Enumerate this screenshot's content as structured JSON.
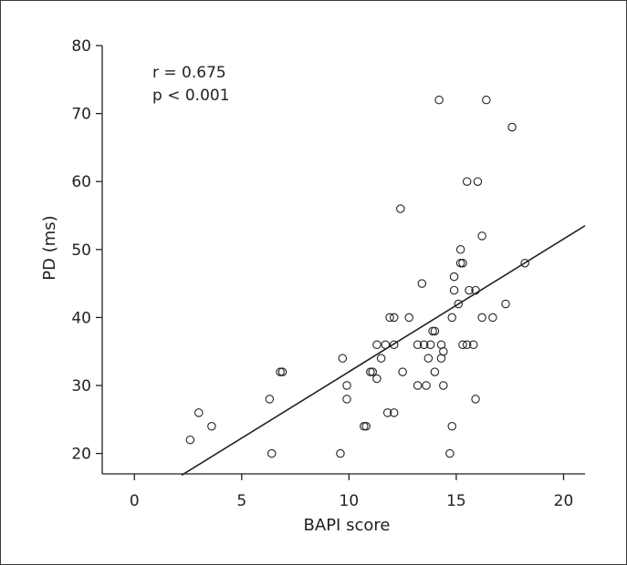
{
  "chart_data": {
    "type": "scatter",
    "xlabel": "BAPI score",
    "ylabel": "PD (ms)",
    "xlim": [
      -1.5,
      21
    ],
    "ylim": [
      17,
      80
    ],
    "xticks": [
      0,
      5,
      10,
      15,
      20
    ],
    "yticks": [
      20,
      30,
      40,
      50,
      60,
      70,
      80
    ],
    "grid": false,
    "annotations": [
      "r = 0.675",
      "p < 0.001"
    ],
    "regression_line": {
      "x": [
        2.2,
        21
      ],
      "y": [
        16.8,
        53.5
      ]
    },
    "points": [
      {
        "x": 2.6,
        "y": 22
      },
      {
        "x": 3.0,
        "y": 26
      },
      {
        "x": 3.6,
        "y": 24
      },
      {
        "x": 6.3,
        "y": 28
      },
      {
        "x": 6.4,
        "y": 20
      },
      {
        "x": 6.8,
        "y": 32
      },
      {
        "x": 6.9,
        "y": 32
      },
      {
        "x": 9.6,
        "y": 20
      },
      {
        "x": 9.7,
        "y": 34
      },
      {
        "x": 9.9,
        "y": 30
      },
      {
        "x": 9.9,
        "y": 28
      },
      {
        "x": 10.7,
        "y": 24
      },
      {
        "x": 10.8,
        "y": 24
      },
      {
        "x": 11.0,
        "y": 32
      },
      {
        "x": 11.1,
        "y": 32
      },
      {
        "x": 11.3,
        "y": 36
      },
      {
        "x": 11.3,
        "y": 31
      },
      {
        "x": 11.5,
        "y": 34
      },
      {
        "x": 11.7,
        "y": 36
      },
      {
        "x": 11.8,
        "y": 26
      },
      {
        "x": 11.9,
        "y": 40
      },
      {
        "x": 12.1,
        "y": 40
      },
      {
        "x": 12.1,
        "y": 36
      },
      {
        "x": 12.1,
        "y": 26
      },
      {
        "x": 12.4,
        "y": 56
      },
      {
        "x": 12.5,
        "y": 32
      },
      {
        "x": 12.8,
        "y": 40
      },
      {
        "x": 13.2,
        "y": 36
      },
      {
        "x": 13.2,
        "y": 30
      },
      {
        "x": 13.4,
        "y": 45
      },
      {
        "x": 13.5,
        "y": 36
      },
      {
        "x": 13.6,
        "y": 30
      },
      {
        "x": 13.7,
        "y": 34
      },
      {
        "x": 13.8,
        "y": 36
      },
      {
        "x": 13.9,
        "y": 38
      },
      {
        "x": 14.0,
        "y": 38
      },
      {
        "x": 14.0,
        "y": 32
      },
      {
        "x": 14.2,
        "y": 72
      },
      {
        "x": 14.3,
        "y": 36
      },
      {
        "x": 14.3,
        "y": 34
      },
      {
        "x": 14.4,
        "y": 35
      },
      {
        "x": 14.4,
        "y": 30
      },
      {
        "x": 14.7,
        "y": 20
      },
      {
        "x": 14.8,
        "y": 40
      },
      {
        "x": 14.8,
        "y": 24
      },
      {
        "x": 14.9,
        "y": 44
      },
      {
        "x": 14.9,
        "y": 46
      },
      {
        "x": 15.1,
        "y": 42
      },
      {
        "x": 15.2,
        "y": 50
      },
      {
        "x": 15.2,
        "y": 48
      },
      {
        "x": 15.3,
        "y": 48
      },
      {
        "x": 15.3,
        "y": 36
      },
      {
        "x": 15.5,
        "y": 36
      },
      {
        "x": 15.5,
        "y": 60
      },
      {
        "x": 15.6,
        "y": 44
      },
      {
        "x": 15.8,
        "y": 36
      },
      {
        "x": 15.9,
        "y": 44
      },
      {
        "x": 15.9,
        "y": 28
      },
      {
        "x": 16.0,
        "y": 60
      },
      {
        "x": 16.2,
        "y": 52
      },
      {
        "x": 16.2,
        "y": 40
      },
      {
        "x": 16.4,
        "y": 72
      },
      {
        "x": 16.7,
        "y": 40
      },
      {
        "x": 17.3,
        "y": 42
      },
      {
        "x": 17.6,
        "y": 68
      },
      {
        "x": 18.2,
        "y": 48
      }
    ]
  }
}
